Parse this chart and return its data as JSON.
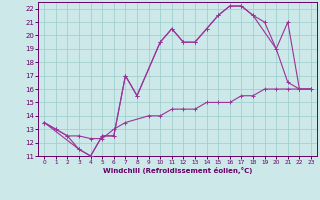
{
  "xlabel": "Windchill (Refroidissement éolien,°C)",
  "bg_color": "#cce8e8",
  "grid_color": "#99cccc",
  "line_color": "#993399",
  "xlim": [
    -0.5,
    23.5
  ],
  "ylim": [
    11,
    22.5
  ],
  "xticks": [
    0,
    1,
    2,
    3,
    4,
    5,
    6,
    7,
    8,
    9,
    10,
    11,
    12,
    13,
    14,
    15,
    16,
    17,
    18,
    19,
    20,
    21,
    22,
    23
  ],
  "yticks": [
    11,
    12,
    13,
    14,
    15,
    16,
    17,
    18,
    19,
    20,
    21,
    22
  ],
  "curve1_x": [
    0,
    1,
    2,
    3,
    4,
    5,
    6,
    7,
    8,
    10,
    11,
    12,
    13,
    14,
    15,
    16,
    17,
    18,
    19,
    20,
    21,
    22,
    23
  ],
  "curve1_y": [
    13.5,
    13.0,
    12.5,
    11.5,
    11.0,
    12.5,
    12.5,
    17.0,
    15.5,
    19.5,
    20.5,
    19.5,
    19.5,
    20.5,
    21.5,
    22.2,
    22.2,
    21.5,
    21.0,
    19.0,
    16.5,
    16.0,
    16.0
  ],
  "curve2_x": [
    0,
    1,
    2,
    3,
    4,
    5,
    6,
    7,
    9,
    10,
    11,
    12,
    13,
    14,
    15,
    16,
    17,
    18,
    19,
    20,
    21,
    22,
    23
  ],
  "curve2_y": [
    13.5,
    13.0,
    12.5,
    12.5,
    12.3,
    12.3,
    13.0,
    13.5,
    14.0,
    14.0,
    14.5,
    14.5,
    14.5,
    15.0,
    15.0,
    15.0,
    15.5,
    15.5,
    16.0,
    16.0,
    16.0,
    16.0,
    16.0
  ],
  "curve3_x": [
    0,
    3,
    4,
    5,
    6,
    7,
    8,
    10,
    11,
    12,
    13,
    14,
    15,
    16,
    17,
    18,
    20,
    21,
    22,
    23
  ],
  "curve3_y": [
    13.5,
    11.5,
    11.0,
    12.5,
    12.5,
    17.0,
    15.5,
    19.5,
    20.5,
    19.5,
    19.5,
    20.5,
    21.5,
    22.2,
    22.2,
    21.5,
    19.0,
    21.0,
    16.0,
    16.0
  ]
}
